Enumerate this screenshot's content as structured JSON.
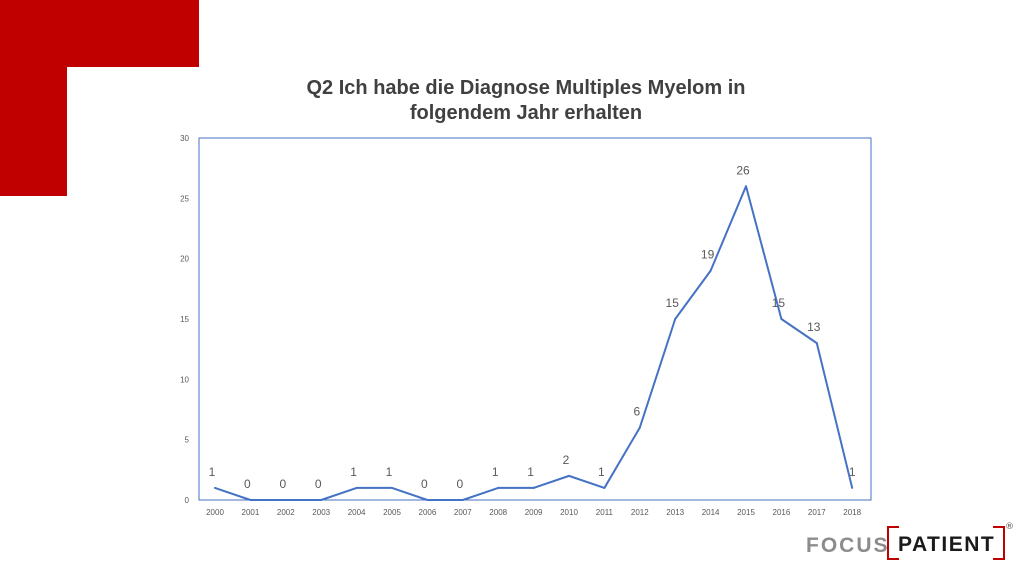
{
  "chart_data": {
    "type": "line",
    "title": "Q2 Ich habe die Diagnose Multiples Myelom in folgendem Jahr erhalten",
    "title_lines": [
      "Q2 Ich habe die Diagnose Multiples Myelom in",
      "folgendem Jahr erhalten"
    ],
    "categories": [
      "2000",
      "2001",
      "2002",
      "2003",
      "2004",
      "2005",
      "2006",
      "2007",
      "2008",
      "2009",
      "2010",
      "2011",
      "2012",
      "2013",
      "2014",
      "2015",
      "2016",
      "2017",
      "2018"
    ],
    "values": [
      1,
      0,
      0,
      0,
      1,
      1,
      0,
      0,
      1,
      1,
      2,
      1,
      6,
      15,
      19,
      26,
      15,
      13,
      1
    ],
    "ylim": [
      0,
      30
    ],
    "yticks": [
      0,
      5,
      10,
      15,
      20,
      25,
      30
    ],
    "xlabel": "",
    "ylabel": "",
    "grid": false,
    "legend": "none",
    "data_labels": true,
    "line_color": "#4472c4",
    "border_color": "#4472c4"
  },
  "logo": {
    "text_focus": "FOCUS",
    "text_patient": "PATIENT",
    "registered": "®"
  },
  "colors": {
    "brand_red": "#c00000",
    "title_text": "#404040",
    "axis_text": "#595959"
  }
}
